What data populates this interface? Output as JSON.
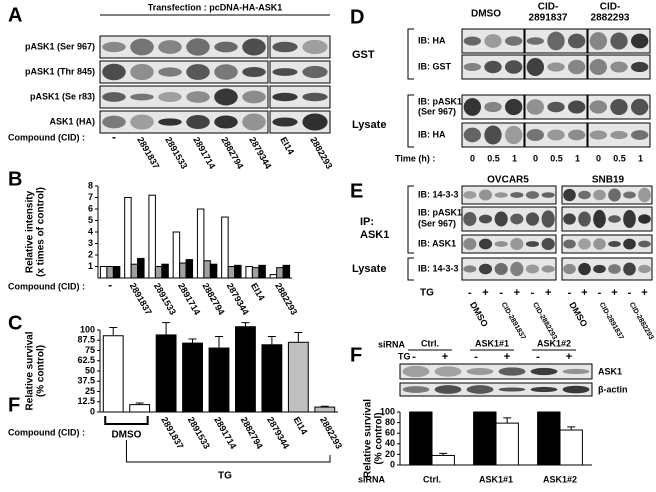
{
  "panels": {
    "A": {
      "label": "A",
      "header": "Transfection : pcDNA-HA-ASK1",
      "rows": [
        "pASK1 (Ser 967)",
        "pASK1 (Thr 845)",
        "pASK1 (Se r83)",
        "ASK1 (HA)"
      ],
      "compound_label": "Compound (CID) :",
      "lanes": [
        "-",
        "2891837",
        "2891533",
        "2891714",
        "2882794",
        "2879344",
        "EI14",
        "2882293"
      ]
    },
    "D": {
      "label": "D",
      "columns": [
        [
          "DMSO"
        ],
        [
          "CID-",
          "2891837"
        ],
        [
          "CID-",
          "2882293"
        ]
      ],
      "groups": [
        {
          "name": "GST",
          "rows": [
            [
              "IB: HA"
            ],
            [
              "IB: GST"
            ]
          ]
        },
        {
          "name": "Lysate",
          "rows": [
            [
              "IB: pASK1",
              "(Ser 967)"
            ],
            [
              "IB: HA"
            ]
          ]
        }
      ],
      "time_label": "Time (h) :",
      "times": [
        "0",
        "0.5",
        "1",
        "0",
        "0.5",
        "1",
        "0",
        "0.5",
        "1"
      ]
    },
    "E": {
      "label": "E",
      "cell_lines": [
        "OVCAR5",
        "SNB19"
      ],
      "ip_label": [
        "IP:",
        "ASK1"
      ],
      "ip_rows": [
        "IB: 14-3-3",
        "IB: pASK1",
        "(Ser 967)",
        "IB: ASK1"
      ],
      "lysate_label": "Lysate",
      "lysate_row": "IB: 14-3-3",
      "tg_label": "TG",
      "tg_signs": [
        "-",
        "+",
        "-",
        "+",
        "-",
        "+",
        "-",
        "+",
        "-",
        "+",
        "-",
        "+"
      ],
      "lanes": [
        "DMSO",
        "CID-2891837",
        "CID-2882293",
        "DMSO",
        "CID-2891837",
        "CID-2882293"
      ]
    },
    "F": {
      "label": "F",
      "sirna_label": "siRNA",
      "groups": [
        "Ctrl.",
        "ASK1#1",
        "ASK1#2"
      ],
      "tg_label": "TG",
      "tg_signs": [
        "-",
        "+",
        "-",
        "+",
        "-",
        "+"
      ],
      "blots": [
        "ASK1",
        "β-actin"
      ]
    }
  },
  "chart_data": [
    {
      "type": "bar",
      "panel": "B",
      "ylabel": [
        "Relative intensity",
        "(x times of control)"
      ],
      "ylim": [
        0,
        8
      ],
      "yticks": [
        1,
        2,
        3,
        4,
        5,
        6,
        7,
        8
      ],
      "compound_label": "Compound (CID) :",
      "categories": [
        "-",
        "2891837",
        "2891533",
        "2891714",
        "2882794",
        "2879344",
        "EI14",
        "2882293"
      ],
      "series": [
        {
          "color": "#ffffff",
          "values": [
            1,
            7,
            7.2,
            4,
            6,
            5.3,
            1,
            0.3
          ]
        },
        {
          "color": "#a0a0a0",
          "values": [
            1,
            1.2,
            1,
            1.3,
            1.5,
            1,
            0.9,
            0.9
          ]
        },
        {
          "color": "#000000",
          "values": [
            1,
            1.7,
            1.2,
            1.6,
            1.2,
            1.1,
            1.1,
            1.1
          ]
        }
      ]
    },
    {
      "type": "bar",
      "panel": "C",
      "ylabel": [
        "Relative survival",
        "(% control)"
      ],
      "ylim": [
        0,
        100
      ],
      "yticks": [
        0,
        12.5,
        25,
        37.5,
        50,
        62.5,
        75,
        87.5,
        100
      ],
      "compound_label": "Compound (CID) :",
      "brackets": [
        "DMSO",
        "TG"
      ],
      "categories": [
        null,
        null,
        "2891837",
        "2891533",
        "2891714",
        "2882794",
        "2879344",
        "EI14",
        "2882293"
      ],
      "values": [
        93,
        9,
        94,
        84,
        78,
        104,
        82,
        85,
        6
      ],
      "errors": [
        10,
        2,
        15,
        5,
        14,
        5,
        10,
        12,
        1
      ],
      "colors": [
        "#ffffff",
        "#ffffff",
        "#000000",
        "#000000",
        "#000000",
        "#000000",
        "#000000",
        "#c0c0c0",
        "#c0c0c0"
      ]
    },
    {
      "type": "bar",
      "panel": "F",
      "ylabel": [
        "Relative survival",
        "(% control)"
      ],
      "ylim": [
        0,
        100
      ],
      "yticks": [
        0,
        20,
        40,
        60,
        80,
        100
      ],
      "xlabel": "siRNA",
      "categories": [
        "Ctrl.",
        "ASK1#1",
        "ASK1#2"
      ],
      "series": [
        {
          "color": "#000000",
          "values": [
            100,
            100,
            100
          ]
        },
        {
          "color": "#ffffff",
          "values": [
            18,
            79,
            66
          ],
          "errors": [
            4,
            10,
            6
          ]
        }
      ]
    }
  ]
}
